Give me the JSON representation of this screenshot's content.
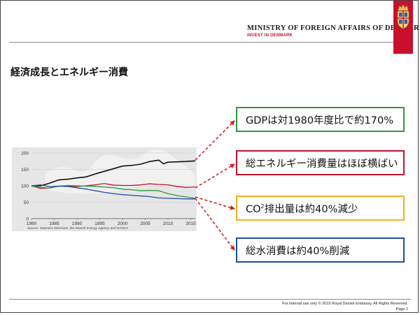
{
  "header": {
    "ministry_title": "MINISTRY OF FOREIGN AFFAIRS OF DENMARK",
    "ministry_subtitle": "INVEST IN DENMARK",
    "brand_red": "#c8102e"
  },
  "slide": {
    "title": "経済成長とエネルギー消費"
  },
  "callouts": [
    {
      "text": "GDPは対1980年度比で約170%",
      "border_color": "#2e9a3e"
    },
    {
      "text": "総エネルギー消費量はほぼ横ばい",
      "border_color": "#c0142c"
    },
    {
      "pre": "CO",
      "sup": "2",
      "post": "排出量は約40%減少",
      "border_color": "#f2b21f"
    },
    {
      "text": "総水消費は約40%削減",
      "border_color": "#1e4fa3"
    }
  ],
  "arrow_color": "#d42027",
  "footer": {
    "notice": "For internal use only  © 2019 Royal Danish Embassy. All Rights Reserved.",
    "page": "Page 2"
  },
  "chart_data": {
    "type": "line",
    "x_ticks": [
      "1980",
      "1985",
      "1990",
      "1995",
      "2000",
      "2005",
      "2010",
      "2015"
    ],
    "y_ticks": [
      "0",
      "50",
      "100",
      "150",
      "200"
    ],
    "xlim": [
      1980,
      2016
    ],
    "ylim": [
      0,
      200
    ],
    "grid": true,
    "legend": "none",
    "source": "Source: Statistics Denmark, the Danish Energy Agency and DANVA",
    "series": [
      {
        "color": "#111111",
        "x": [
          1980,
          1982,
          1984,
          1986,
          1988,
          1990,
          1992,
          1994,
          1996,
          1998,
          2000,
          2002,
          2004,
          2006,
          2008,
          2009,
          2010,
          2012,
          2014,
          2016
        ],
        "y": [
          100,
          100,
          108,
          118,
          120,
          124,
          127,
          136,
          144,
          152,
          160,
          162,
          166,
          174,
          178,
          167,
          172,
          173,
          174,
          176
        ]
      },
      {
        "color": "#c0142c",
        "x": [
          1980,
          1982,
          1984,
          1986,
          1988,
          1990,
          1992,
          1994,
          1996,
          1998,
          2000,
          2002,
          2004,
          2006,
          2008,
          2010,
          2012,
          2014,
          2016
        ],
        "y": [
          100,
          92,
          93,
          99,
          99,
          98,
          100,
          103,
          107,
          102,
          101,
          101,
          103,
          106,
          104,
          103,
          98,
          95,
          96
        ]
      },
      {
        "color": "#2e9a3e",
        "x": [
          1980,
          1982,
          1984,
          1986,
          1988,
          1990,
          1992,
          1994,
          1996,
          1998,
          2000,
          2002,
          2004,
          2006,
          2008,
          2010,
          2012,
          2014,
          2016
        ],
        "y": [
          100,
          95,
          93,
          99,
          101,
          100,
          99,
          98,
          96,
          94,
          90,
          88,
          85,
          86,
          85,
          76,
          70,
          66,
          62
        ]
      },
      {
        "color": "#1e4fa3",
        "x": [
          1980,
          1982,
          1984,
          1986,
          1988,
          1990,
          1992,
          1994,
          1996,
          1998,
          2000,
          2002,
          2004,
          2006,
          2008,
          2010,
          2012,
          2014,
          2016
        ],
        "y": [
          100,
          103,
          97,
          99,
          98,
          94,
          90,
          85,
          80,
          76,
          73,
          71,
          69,
          67,
          63,
          62,
          61,
          60,
          60
        ]
      }
    ]
  }
}
